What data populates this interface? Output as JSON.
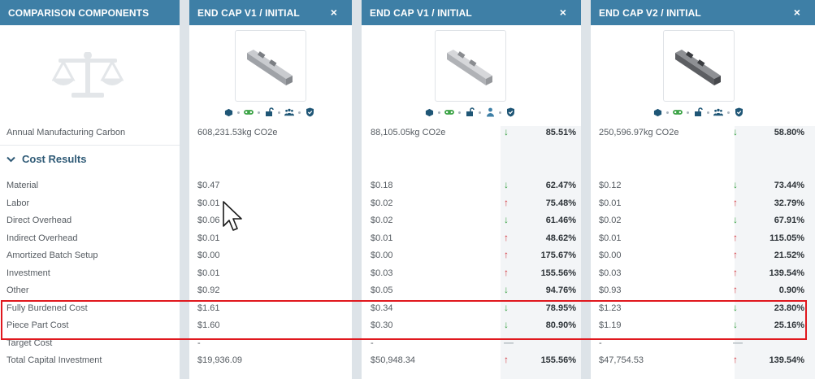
{
  "header": {
    "left_title": "COMPARISON COMPONENTS",
    "col_a_title": "END CAP V1 / INITIAL",
    "col_b_title": "END CAP V1 / INITIAL",
    "col_c_title": "END CAP V2 / INITIAL",
    "close_glyph": "×"
  },
  "icons": {
    "col_a": [
      "cube-icon",
      "link-icon",
      "unlock-icon",
      "users-icon",
      "shield-check-icon"
    ],
    "col_b": [
      "cube-icon",
      "link-icon",
      "unlock-icon",
      "user-icon",
      "shield-check-icon"
    ],
    "col_c": [
      "cube-icon",
      "link-icon",
      "unlock-icon",
      "users-icon",
      "shield-check-icon"
    ]
  },
  "carbon": {
    "label": "Annual Manufacturing Carbon",
    "a": "608,231.53kg CO2e",
    "b": "88,105.05kg CO2e",
    "b_pct": "85.51%",
    "b_dir": "down",
    "c": "250,596.97kg CO2e",
    "c_pct": "58.80%",
    "c_dir": "down"
  },
  "section": {
    "title": "Cost Results"
  },
  "rows": [
    {
      "label": "Material",
      "a": "$0.47",
      "b": "$0.18",
      "b_pct": "62.47%",
      "b_dir": "down",
      "c": "$0.12",
      "c_pct": "73.44%",
      "c_dir": "down"
    },
    {
      "label": "Labor",
      "a": "$0.01",
      "b": "$0.02",
      "b_pct": "75.48%",
      "b_dir": "up",
      "c": "$0.01",
      "c_pct": "32.79%",
      "c_dir": "up"
    },
    {
      "label": "Direct Overhead",
      "a": "$0.06",
      "b": "$0.02",
      "b_pct": "61.46%",
      "b_dir": "down",
      "c": "$0.02",
      "c_pct": "67.91%",
      "c_dir": "down"
    },
    {
      "label": "Indirect Overhead",
      "a": "$0.01",
      "b": "$0.01",
      "b_pct": "48.62%",
      "b_dir": "up",
      "c": "$0.01",
      "c_pct": "115.05%",
      "c_dir": "up"
    },
    {
      "label": "Amortized Batch Setup",
      "a": "$0.00",
      "b": "$0.00",
      "b_pct": "175.67%",
      "b_dir": "up",
      "c": "$0.00",
      "c_pct": "21.52%",
      "c_dir": "up"
    },
    {
      "label": "Investment",
      "a": "$0.01",
      "b": "$0.03",
      "b_pct": "155.56%",
      "b_dir": "up",
      "c": "$0.03",
      "c_pct": "139.54%",
      "c_dir": "up"
    },
    {
      "label": "Other",
      "a": "$0.92",
      "b": "$0.05",
      "b_pct": "94.76%",
      "b_dir": "down",
      "c": "$0.93",
      "c_pct": "0.90%",
      "c_dir": "up"
    },
    {
      "label": "Fully Burdened Cost",
      "a": "$1.61",
      "b": "$0.34",
      "b_pct": "78.95%",
      "b_dir": "down",
      "c": "$1.23",
      "c_pct": "23.80%",
      "c_dir": "down"
    },
    {
      "label": "Piece Part Cost",
      "a": "$1.60",
      "b": "$0.30",
      "b_pct": "80.90%",
      "b_dir": "down",
      "c": "$1.19",
      "c_pct": "25.16%",
      "c_dir": "down"
    },
    {
      "label": "Target Cost",
      "a": "-",
      "b": "-",
      "b_pct": "",
      "b_dir": "none",
      "c": "-",
      "c_pct": "",
      "c_dir": "none"
    },
    {
      "label": "Total Capital Investment",
      "a": "$19,936.09",
      "b": "$50,948.34",
      "b_pct": "155.56%",
      "b_dir": "up",
      "c": "$47,754.53",
      "c_pct": "139.54%",
      "c_dir": "up"
    }
  ],
  "colors": {
    "header_bg": "#3e7fa6",
    "section_title": "#2f5a76",
    "down_arrow": "#2e9b3a",
    "up_arrow": "#d2333b",
    "highlight_border": "#e0181e"
  }
}
